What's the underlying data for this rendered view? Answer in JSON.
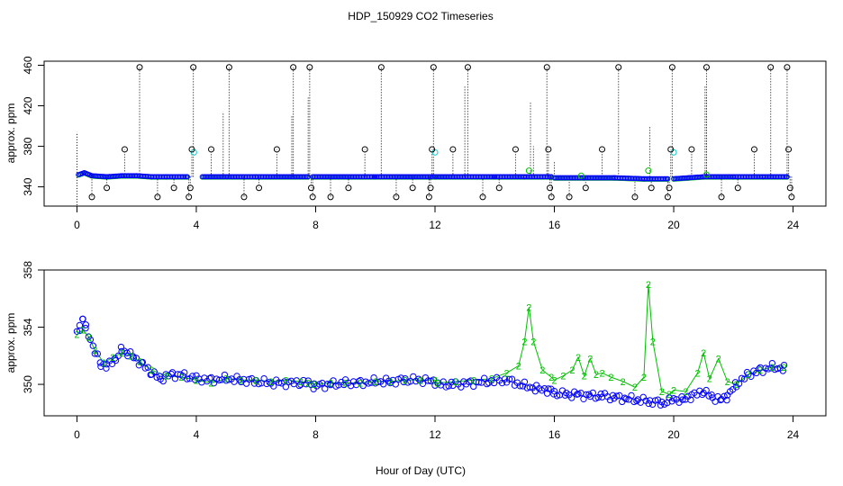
{
  "chart_data": [
    {
      "type": "scatter",
      "title": "HDP_150929  CO2 Timeseries",
      "ylabel": "approx. ppm",
      "xlim": [
        -1.1,
        25.1
      ],
      "ylim": [
        321,
        464
      ],
      "xticks": [
        0,
        4,
        8,
        12,
        16,
        20,
        24
      ],
      "yticks": [
        340,
        380,
        420,
        460
      ],
      "ytick_labels": [
        "340",
        "380",
        "420",
        "460"
      ],
      "colors": {
        "main": "#0000ff",
        "alt": "#00c000",
        "flag": "#00cccc",
        "outlier": "#000000"
      },
      "baseline_segments": [
        {
          "x": [
            0.05,
            0.25,
            0.5,
            1.0,
            1.5,
            2.0,
            2.5,
            3.0,
            3.7
          ],
          "y": [
            352,
            354,
            351,
            350,
            351,
            351,
            350,
            350,
            350
          ]
        },
        {
          "x": [
            4.2,
            6.0,
            7.75
          ],
          "y": [
            350,
            350,
            350
          ]
        },
        {
          "x": [
            7.9,
            10.0,
            12.0
          ],
          "y": [
            350,
            350,
            350
          ]
        },
        {
          "x": [
            12.0,
            14.0,
            15.0,
            15.9
          ],
          "y": [
            350,
            350,
            350,
            350
          ]
        },
        {
          "x": [
            16.0,
            17.0,
            18.0,
            19.0,
            19.8
          ],
          "y": [
            349,
            349,
            349,
            348,
            348
          ]
        },
        {
          "x": [
            20.0,
            20.5,
            21.0,
            22.0,
            23.0,
            23.8
          ],
          "y": [
            348,
            349,
            350,
            350,
            350,
            350
          ]
        }
      ],
      "green_points": [
        [
          15.15,
          356
        ],
        [
          19.15,
          356
        ],
        [
          16.9,
          351
        ],
        [
          21.1,
          352
        ]
      ],
      "cyan_points": [
        [
          3.92,
          374
        ],
        [
          12.0,
          374
        ],
        [
          20.0,
          374
        ]
      ],
      "outliers": [
        [
          0.5,
          330
        ],
        [
          1.0,
          339
        ],
        [
          1.6,
          377
        ],
        [
          2.1,
          458
        ],
        [
          2.7,
          330
        ],
        [
          3.25,
          339
        ],
        [
          3.75,
          330
        ],
        [
          3.8,
          339
        ],
        [
          3.85,
          377
        ],
        [
          3.9,
          458
        ],
        [
          4.5,
          377
        ],
        [
          5.1,
          458
        ],
        [
          5.6,
          330
        ],
        [
          6.1,
          339
        ],
        [
          6.7,
          377
        ],
        [
          7.25,
          458
        ],
        [
          7.8,
          458
        ],
        [
          7.85,
          339
        ],
        [
          7.9,
          330
        ],
        [
          8.5,
          330
        ],
        [
          9.1,
          339
        ],
        [
          9.65,
          377
        ],
        [
          10.2,
          458
        ],
        [
          10.7,
          330
        ],
        [
          11.25,
          339
        ],
        [
          11.8,
          330
        ],
        [
          11.85,
          339
        ],
        [
          11.9,
          377
        ],
        [
          11.95,
          458
        ],
        [
          12.6,
          377
        ],
        [
          13.1,
          458
        ],
        [
          13.6,
          330
        ],
        [
          14.15,
          339
        ],
        [
          14.7,
          377
        ],
        [
          15.75,
          458
        ],
        [
          15.8,
          377
        ],
        [
          15.85,
          339
        ],
        [
          15.9,
          330
        ],
        [
          16.5,
          330
        ],
        [
          17.05,
          339
        ],
        [
          17.6,
          377
        ],
        [
          18.15,
          458
        ],
        [
          18.7,
          330
        ],
        [
          19.25,
          339
        ],
        [
          19.8,
          330
        ],
        [
          19.85,
          339
        ],
        [
          19.9,
          377
        ],
        [
          19.95,
          458
        ],
        [
          20.6,
          377
        ],
        [
          21.1,
          458
        ],
        [
          21.6,
          330
        ],
        [
          22.15,
          339
        ],
        [
          22.7,
          377
        ],
        [
          23.25,
          458
        ],
        [
          23.8,
          458
        ],
        [
          23.85,
          377
        ],
        [
          23.9,
          339
        ],
        [
          23.95,
          330
        ]
      ],
      "spikes": [
        [
          0.0,
          322,
          394
        ],
        [
          4.9,
          350,
          414
        ],
        [
          7.2,
          350,
          410
        ],
        [
          7.75,
          350,
          428
        ],
        [
          13.0,
          350,
          440
        ],
        [
          15.2,
          350,
          424
        ],
        [
          15.3,
          350,
          380
        ],
        [
          16.0,
          350,
          366
        ],
        [
          19.2,
          350,
          400
        ],
        [
          21.05,
          350,
          440
        ],
        [
          21.1,
          350,
          430
        ]
      ]
    },
    {
      "type": "line",
      "ylabel": "approx. ppm",
      "xlabel": "Hour of Day (UTC)",
      "xlim": [
        -1.1,
        25.1
      ],
      "ylim": [
        347.8,
        358.0
      ],
      "xticks": [
        0,
        4,
        8,
        12,
        16,
        20,
        24
      ],
      "yticks": [
        350,
        354,
        358
      ],
      "ytick_labels": [
        "350",
        "354",
        "358"
      ],
      "marker_text": "2",
      "colors": {
        "main": "#0000ff",
        "alt": "#00c000"
      },
      "blue_series": {
        "x": [
          0.0,
          0.1,
          0.2,
          0.3,
          0.45,
          0.6,
          0.8,
          1.0,
          1.3,
          1.5,
          1.7,
          1.9,
          2.2,
          2.5,
          2.8,
          3.2,
          3.6,
          4.0,
          4.5,
          5.0,
          5.5,
          6.0,
          6.5,
          7.0,
          7.5,
          7.75,
          7.95,
          8.5,
          9.0,
          9.5,
          10.0,
          10.5,
          11.0,
          11.5,
          12.0,
          12.1,
          12.6,
          13.2,
          13.8,
          14.4,
          15.0,
          15.4,
          15.8,
          16.0,
          16.4,
          16.8,
          17.2,
          17.6,
          18.0,
          18.4,
          18.8,
          19.2,
          19.6,
          19.85,
          20.0,
          20.3,
          20.6,
          21.0,
          21.3,
          21.6,
          21.8,
          22.1,
          22.5,
          22.9,
          23.3,
          23.7
        ],
        "y": [
          353.6,
          354.0,
          354.6,
          353.9,
          353.2,
          352.3,
          351.4,
          351.3,
          351.8,
          352.4,
          352.2,
          351.9,
          351.4,
          350.8,
          350.4,
          350.7,
          350.6,
          350.4,
          350.3,
          350.4,
          350.3,
          350.2,
          350.1,
          350.1,
          350.1,
          350.1,
          349.9,
          350.0,
          350.1,
          350.1,
          350.2,
          350.2,
          350.3,
          350.3,
          350.2,
          350.0,
          350.0,
          350.1,
          350.2,
          350.3,
          349.9,
          349.7,
          349.6,
          349.4,
          349.3,
          349.3,
          349.2,
          349.2,
          349.1,
          349.0,
          348.9,
          348.8,
          348.7,
          348.8,
          349.0,
          348.9,
          349.2,
          349.5,
          349.1,
          348.9,
          349.2,
          350.0,
          350.7,
          351.0,
          351.2,
          351.1
        ]
      },
      "green_series": {
        "x": [
          0.0,
          0.2,
          0.4,
          0.6,
          0.9,
          1.2,
          1.5,
          1.8,
          2.1,
          2.5,
          3.0,
          3.5,
          4.0,
          4.5,
          5.0,
          5.5,
          6.0,
          6.5,
          7.0,
          7.5,
          7.75,
          7.95,
          8.5,
          9.0,
          9.5,
          10.0,
          10.5,
          11.0,
          11.5,
          12.0,
          12.1,
          12.7,
          13.3,
          13.9,
          14.4,
          14.8,
          15.0,
          15.15,
          15.3,
          15.6,
          15.9,
          16.0,
          16.3,
          16.6,
          16.8,
          17.0,
          17.2,
          17.4,
          17.6,
          17.9,
          18.3,
          18.7,
          19.0,
          19.15,
          19.3,
          19.6,
          19.85,
          20.0,
          20.4,
          20.8,
          21.0,
          21.2,
          21.5,
          21.8,
          22.1,
          22.5,
          22.9,
          23.3,
          23.7
        ],
        "y": [
          353.5,
          353.8,
          353.3,
          352.4,
          351.5,
          351.9,
          352.2,
          352.0,
          351.6,
          351.0,
          350.6,
          350.5,
          350.3,
          350.1,
          350.4,
          350.3,
          350.3,
          350.2,
          350.3,
          350.2,
          350.1,
          350.0,
          350.1,
          350.1,
          350.1,
          350.2,
          350.2,
          350.3,
          350.3,
          350.3,
          350.1,
          350.2,
          350.3,
          350.4,
          350.8,
          351.3,
          353.0,
          355.4,
          353.0,
          351.0,
          350.5,
          350.3,
          350.6,
          351.0,
          351.9,
          350.6,
          351.8,
          350.7,
          350.8,
          350.5,
          350.2,
          349.8,
          350.5,
          357.0,
          353.0,
          349.5,
          349.3,
          349.6,
          349.5,
          350.8,
          352.2,
          350.4,
          351.8,
          350.2,
          350.0,
          350.7,
          351.0,
          351.2,
          351.2
        ]
      }
    }
  ],
  "axes": {
    "shared_xlabel": "Hour of Day (UTC)"
  }
}
